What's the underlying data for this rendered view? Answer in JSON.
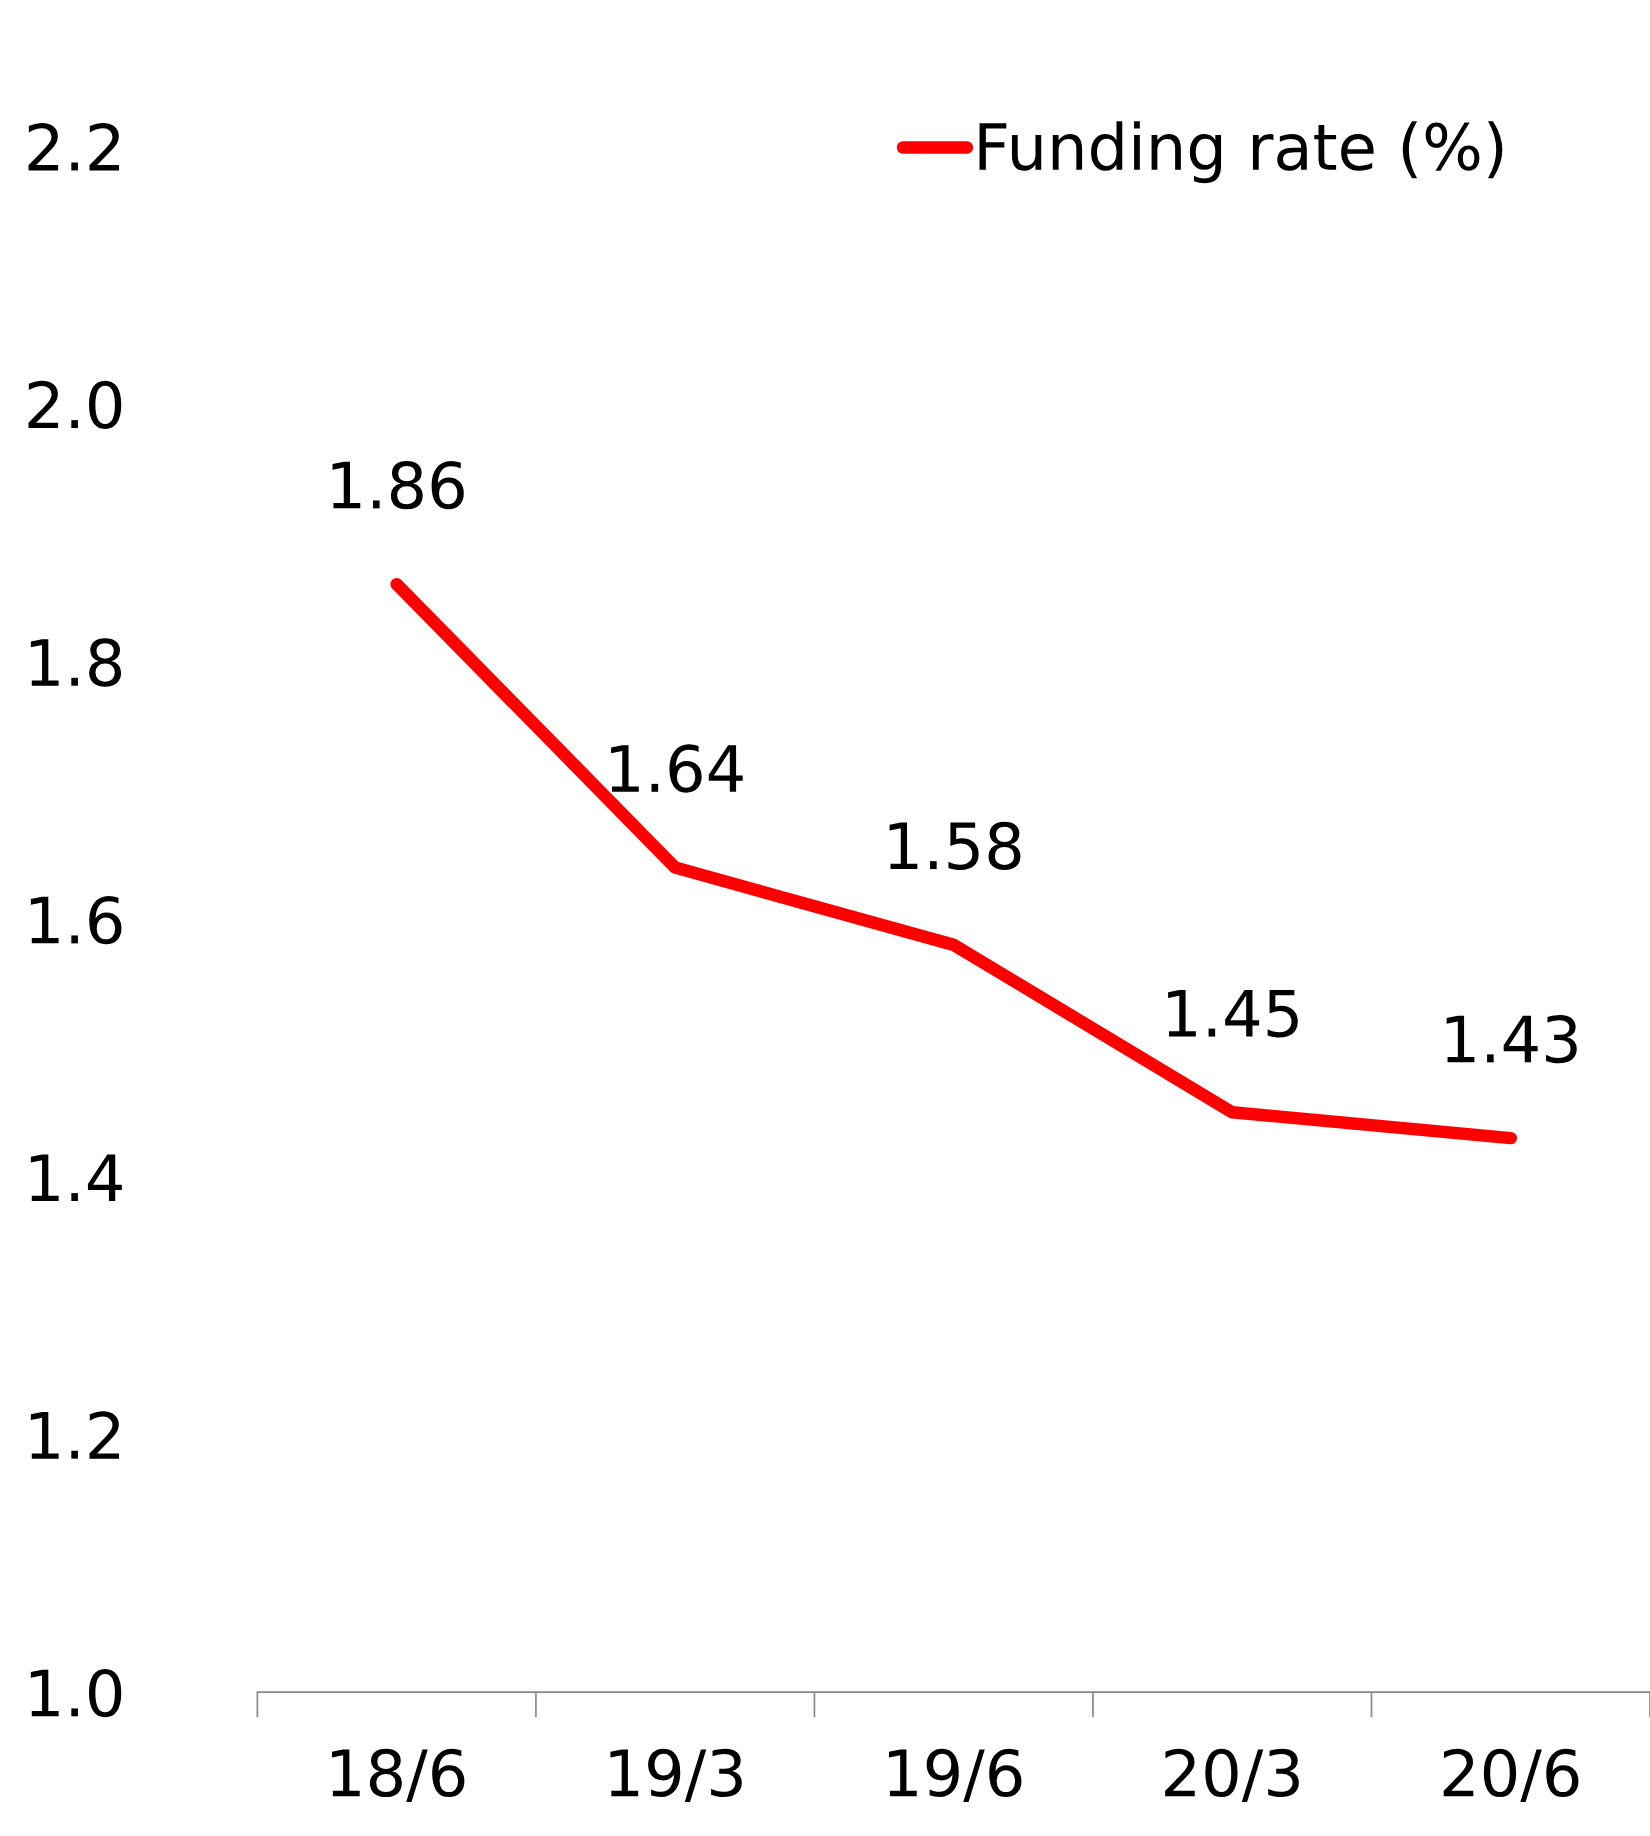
{
  "chart_data": {
    "type": "line",
    "categories": [
      "18/6",
      "19/3",
      "19/6",
      "20/3",
      "20/6"
    ],
    "series": [
      {
        "name": "Funding rate (%)",
        "color": "#ff0000",
        "values": [
          1.86,
          1.64,
          1.58,
          1.45,
          1.43
        ]
      }
    ],
    "ylim": [
      1.0,
      2.2
    ],
    "yticks": [
      {
        "value": 1.0,
        "label": "1.0"
      },
      1.2,
      1.4,
      1.6,
      1.8,
      {
        "value": 2.0,
        "label": "2.0"
      },
      2.2
    ],
    "data_labels": true,
    "legend": "top right",
    "grid": false,
    "line_style": "solid"
  }
}
